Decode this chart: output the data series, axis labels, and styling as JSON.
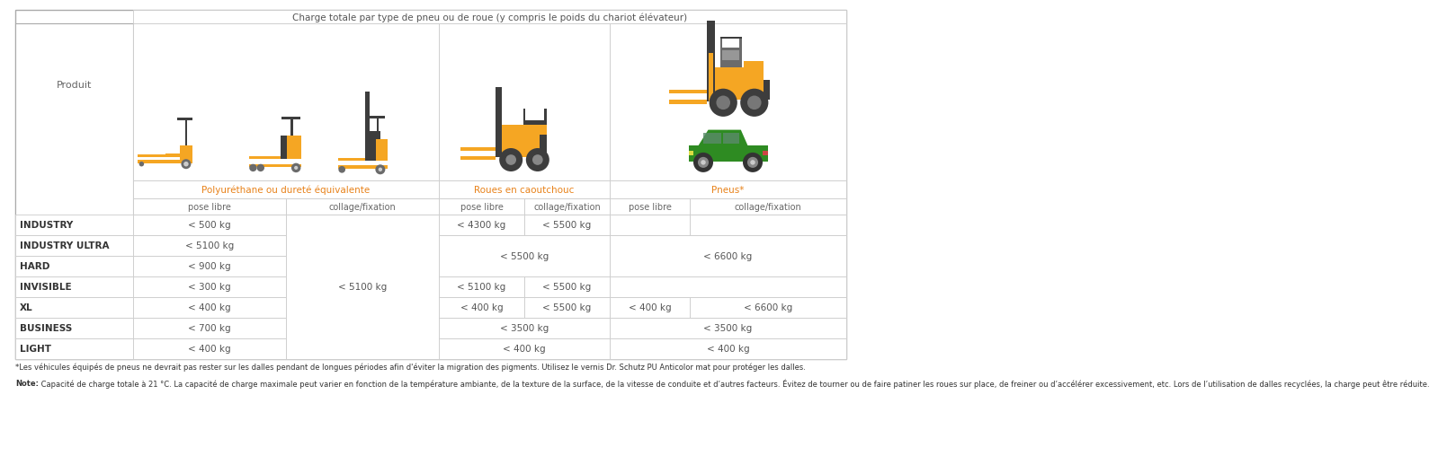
{
  "title_header": "Charge totale par type de pneu ou de roue (y compris le poids du chariot élévateur)",
  "col_header1": "Polyérethane ou dureté équivalente",
  "col_header1_display": "Polyúréthane ou dureté équivalente",
  "col_header2": "Roues en caoutchouc",
  "col_header3": "Pneus*",
  "sub_col1": "pose libre",
  "sub_col2": "collage/fixation",
  "sub_col3": "pose libre",
  "sub_col4": "collage/fixation",
  "sub_col5": "pose libre",
  "sub_col6": "collage/fixation",
  "row_label": "Produit",
  "products": [
    "INDUSTRY",
    "INDUSTRY ULTRA",
    "HARD",
    "INVISIBLE",
    "XL",
    "BUSINESS",
    "LIGHT"
  ],
  "footnote1": "*Les véhicules équipés de pneus ne devrait pas rester sur les dalles pendant de longues périodes afin d'éviter la migration des pigments. Utilisez le vernis Dr. Schutz PU Anticolor mat pour protéger les dalles.",
  "footnote2_bold": "Note:",
  "footnote2_rest": " Capacité de charge totale à 21 °C. La capacité de charge maximale peut varier en fonction de la température ambiante, de la texture de la surface, de la vitesse de conduite et d’autres facteurs. Évitez de tourner ou de faire patiner les roues sur place, de freiner ou d’accélérer excessivement, etc. Lors de l’utilisation de dalles recyclées, la charge peut être réduite.",
  "orange_text": "#E8821A",
  "border_color": "#AAAAAA",
  "inner_border": "#CCCCCC",
  "fig_bg": "#FFFFFF",
  "yellow": "#F5A623",
  "dark_yellow": "#E8960A",
  "dark_grey": "#3D3D3D",
  "mid_grey": "#6B6B6B",
  "light_grey": "#888888",
  "green_car": "#2E8B22",
  "product_bold_color": "#333333",
  "data_color": "#555555",
  "header_color": "#666666"
}
